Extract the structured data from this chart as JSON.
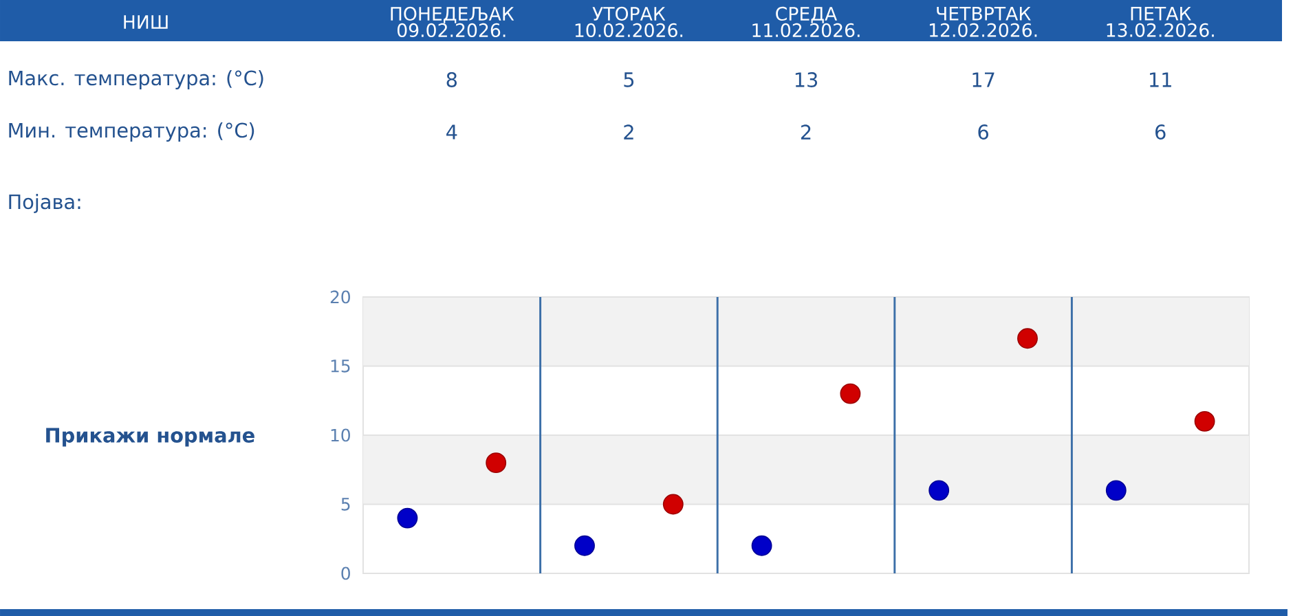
{
  "chart_data": {
    "type": "scatter",
    "title": "НИШ",
    "categories": [
      null,
      null,
      null,
      null,
      null
    ],
    "series": [
      {
        "color": "#d00000",
        "values": [
          8,
          5,
          13,
          17,
          11
        ]
      },
      {
        "color": "#0000c8",
        "values": [
          4,
          2,
          2,
          6,
          6
        ]
      }
    ],
    "ylim": [
      0,
      20
    ],
    "yticks": [
      0,
      5,
      10,
      15,
      20
    ],
    "grid": true,
    "bands": [
      {
        "axis": "y",
        "from": 5,
        "to": 10,
        "color": "#f2f2f2"
      },
      {
        "axis": "y",
        "from": 15,
        "to": 20,
        "color": "#f2f2f2"
      }
    ],
    "marker": "circle",
    "data_labels": true,
    "annotations": [
      "ПОНЕДЕЉАК 09.02.2026.",
      "УТОРАК 10.02.2026.",
      "СРЕДА 11.02.2026.",
      "ЧЕТВРТАК 12.02.2026.",
      "ПЕТАК 13.02.2026.",
      "Макс. температура: (°C)",
      "Мин. температура: (°C)",
      "Појава:",
      "Прикажи нормале"
    ]
  }
}
